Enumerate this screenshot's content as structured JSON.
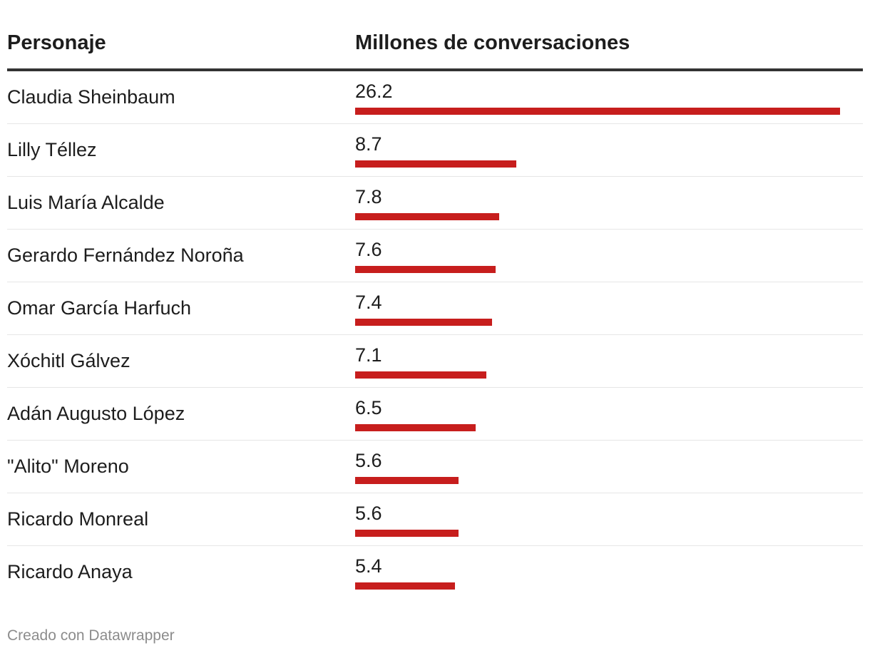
{
  "colors": {
    "bar": "#c71e1d",
    "header_rule": "#333333",
    "row_rule": "#e6e6e6",
    "footer_text": "#8c8c8c"
  },
  "header": {
    "name_col": "Personaje",
    "value_col": "Millones de conversaciones"
  },
  "chart_data": {
    "type": "bar",
    "orientation": "horizontal",
    "title": "",
    "xlabel": "Millones de conversaciones",
    "ylabel": "Personaje",
    "xlim": [
      0,
      26.2
    ],
    "grid": false,
    "categories": [
      "Claudia Sheinbaum",
      "Lilly Téllez",
      "Luis María Alcalde",
      "Gerardo Fernández Noroña",
      "Omar García Harfuch",
      "Xóchitl Gálvez",
      "Adán Augusto López",
      "\"Alito\" Moreno",
      "Ricardo Monreal",
      "Ricardo Anaya"
    ],
    "values": [
      26.2,
      8.7,
      7.8,
      7.6,
      7.4,
      7.1,
      6.5,
      5.6,
      5.6,
      5.4
    ],
    "value_labels": [
      "26.2",
      "8.7",
      "7.8",
      "7.6",
      "7.4",
      "7.1",
      "6.5",
      "5.6",
      "5.6",
      "5.4"
    ]
  },
  "footer": {
    "credit": "Creado con Datawrapper"
  }
}
